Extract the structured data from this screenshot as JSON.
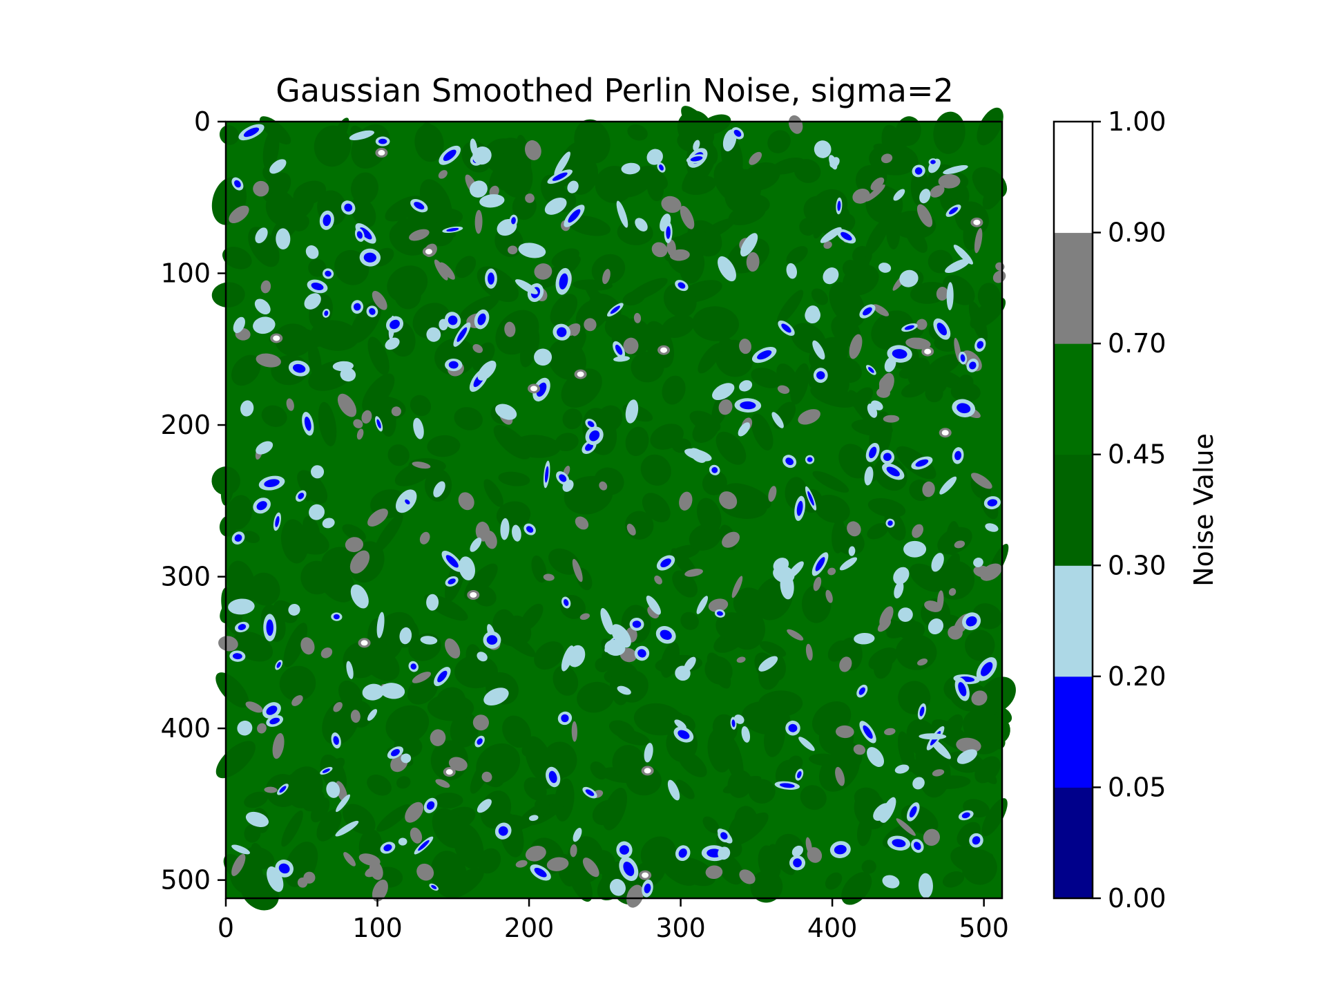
{
  "chart_data": {
    "type": "heatmap",
    "title": "Gaussian Smoothed Perlin Noise, sigma=2",
    "image_size": [
      512,
      512
    ],
    "x_ticks": [
      0,
      100,
      200,
      300,
      400,
      500
    ],
    "y_ticks": [
      0,
      100,
      200,
      300,
      400,
      500
    ],
    "xlim": [
      0,
      512
    ],
    "ylim": [
      512,
      0
    ],
    "colorbar": {
      "label": "Noise Value",
      "levels": [
        0.0,
        0.05,
        0.2,
        0.3,
        0.45,
        0.7,
        0.9,
        1.0
      ],
      "tick_labels": [
        "0.00",
        "0.05",
        "0.20",
        "0.30",
        "0.45",
        "0.70",
        "0.90",
        "1.00"
      ],
      "colors": [
        "#00008b",
        "#0000ff",
        "#add8e6",
        "#006400",
        "#007000",
        "#808080",
        "#ffffff"
      ]
    },
    "dominant_band": "0.45-0.70",
    "grid": false
  }
}
